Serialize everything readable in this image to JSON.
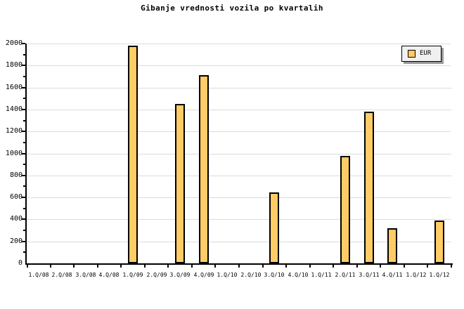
{
  "title": "Gibanje vrednosti vozila po kvartalih",
  "legend": {
    "label": "EUR"
  },
  "colors": {
    "background": "#FFFFFF",
    "bar_fill": "#FFCC66",
    "bar_border": "#000000",
    "gridline": "#DCDCDC",
    "axis": "#000000",
    "legend_bg": "#F0F0F0",
    "legend_shadow": "#999999"
  },
  "chart_data": {
    "type": "bar",
    "title": "Gibanje vrednosti vozila po kvartalih",
    "categories": [
      "1.Q/08",
      "2.Q/08",
      "3.Q/08",
      "4.Q/08",
      "1.Q/09",
      "2.Q/09",
      "3.Q/09",
      "4.Q/09",
      "1.Q/10",
      "2.Q/10",
      "3.Q/10",
      "4.Q/10",
      "1.Q/11",
      "2.Q/11",
      "3.Q/11",
      "4.Q/11",
      "1.Q/12",
      "1.Q/12"
    ],
    "series": [
      {
        "name": "EUR",
        "values": [
          null,
          null,
          null,
          null,
          1980,
          null,
          1450,
          1710,
          null,
          null,
          645,
          null,
          null,
          980,
          1380,
          320,
          null,
          390
        ]
      }
    ],
    "xlabel": "",
    "ylabel": "",
    "ylim": [
      0,
      2000
    ],
    "ytick_step": 200,
    "ytick_minor_step": 100,
    "ytick_labels": [
      "0",
      "200",
      "400",
      "600",
      "800",
      "1000",
      "1200",
      "1400",
      "1600",
      "1800",
      "2000"
    ],
    "grid": "horizontal",
    "legend_position": "top-right"
  }
}
